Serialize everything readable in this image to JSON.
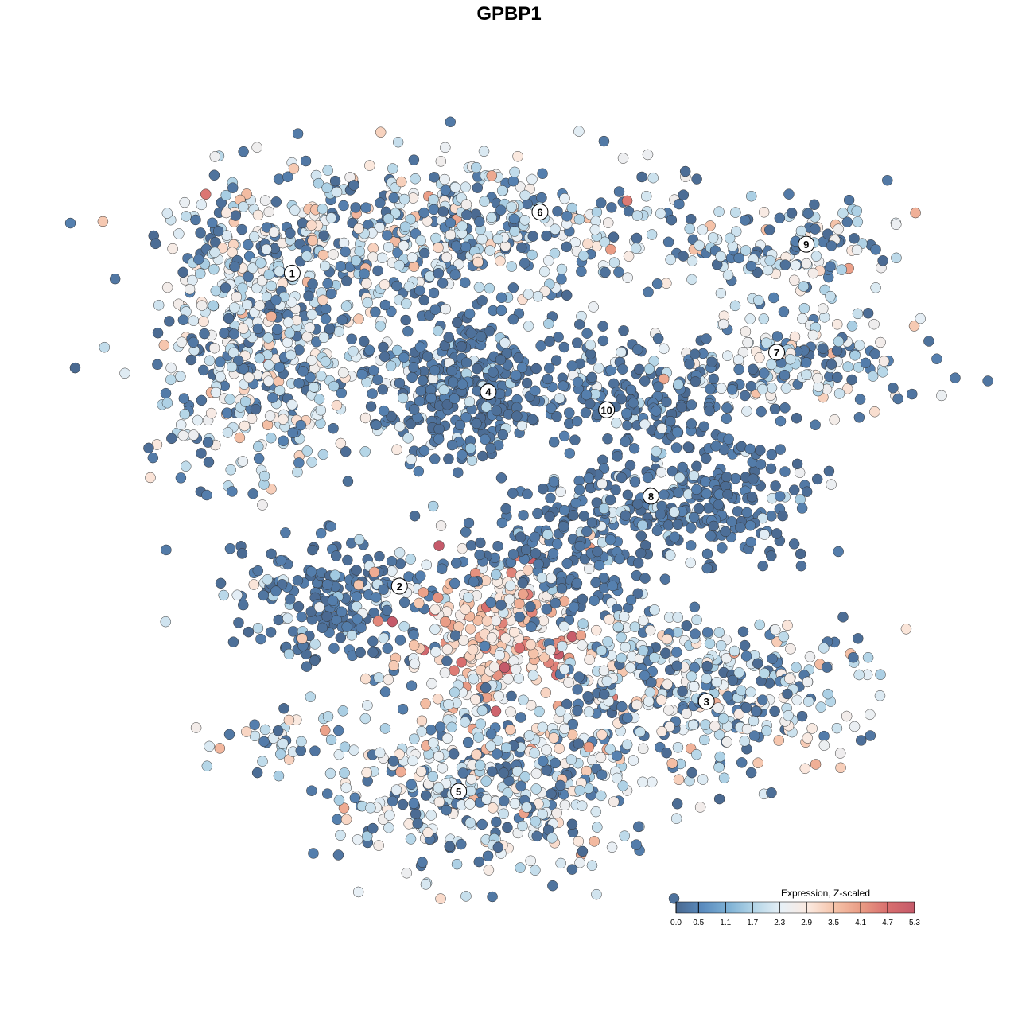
{
  "chart_data": {
    "type": "scatter",
    "title": "GPBP1",
    "xlabel": "",
    "ylabel": "",
    "axes_visible": false,
    "grid": false,
    "xlim": [
      -10,
      10
    ],
    "ylim": [
      -10,
      10
    ],
    "point_outline": "#333333",
    "legend": {
      "title": "Expression, Z-scaled",
      "placement": "bottom-right",
      "type": "colorbar",
      "range": [
        0.0,
        5.3
      ],
      "ticks": [
        "0.0",
        "0.5",
        "1.1",
        "1.7",
        "2.3",
        "2.9",
        "3.5",
        "4.1",
        "4.7",
        "5.3"
      ],
      "colors": [
        "#4a6990",
        "#5b8cbf",
        "#7fb2d5",
        "#b7d7e8",
        "#e8f0f6",
        "#fbe9df",
        "#f5c2a8",
        "#e99b84",
        "#d86e6e",
        "#c55a6a"
      ]
    },
    "clusters": [
      {
        "label": "1",
        "center": [
          -7.2,
          4.8
        ],
        "sd": [
          1.5,
          2.0
        ],
        "n": 520,
        "mean_expr": 1.4
      },
      {
        "label": "6",
        "center": [
          -2.3,
          7.7
        ],
        "sd": [
          3.2,
          1.0
        ],
        "n": 520,
        "mean_expr": 1.3
      },
      {
        "label": "4",
        "center": [
          -1.8,
          3.4
        ],
        "sd": [
          1.2,
          1.2
        ],
        "n": 360,
        "mean_expr": 0.4
      },
      {
        "label": "10",
        "center": [
          2.0,
          3.3
        ],
        "sd": [
          0.9,
          1.1
        ],
        "n": 110,
        "mean_expr": 0.3
      },
      {
        "label": "9",
        "center": [
          7.0,
          7.2
        ],
        "sd": [
          1.3,
          0.7
        ],
        "n": 130,
        "mean_expr": 1.5
      },
      {
        "label": "7",
        "center": [
          7.2,
          4.1
        ],
        "sd": [
          1.7,
          0.7
        ],
        "n": 170,
        "mean_expr": 1.5
      },
      {
        "label": "",
        "center": [
          4.2,
          2.6
        ],
        "sd": [
          0.9,
          0.9
        ],
        "n": 100,
        "mean_expr": 0.8
      },
      {
        "label": "8",
        "center": [
          5.1,
          0.2
        ],
        "sd": [
          1.3,
          0.9
        ],
        "n": 170,
        "mean_expr": 0.3
      },
      {
        "label": "",
        "center": [
          2.5,
          0.0
        ],
        "sd": [
          1.3,
          0.55
        ],
        "n": 90,
        "mean_expr": 0.6
      },
      {
        "label": "2",
        "center": [
          -5.3,
          -2.7
        ],
        "sd": [
          1.5,
          0.9
        ],
        "n": 220,
        "mean_expr": 0.5
      },
      {
        "label": "",
        "center": [
          -0.8,
          -3.6
        ],
        "sd": [
          1.3,
          1.1
        ],
        "n": 280,
        "mean_expr": 3.2
      },
      {
        "label": "",
        "center": [
          0.8,
          -1.4
        ],
        "sd": [
          1.5,
          0.9
        ],
        "n": 160,
        "mean_expr": 0.6
      },
      {
        "label": "3",
        "center": [
          4.6,
          -4.9
        ],
        "sd": [
          2.2,
          1.1
        ],
        "n": 380,
        "mean_expr": 1.7
      },
      {
        "label": "5",
        "center": [
          -1.0,
          -7.6
        ],
        "sd": [
          2.4,
          1.3
        ],
        "n": 480,
        "mean_expr": 1.6
      },
      {
        "label": "",
        "center": [
          -6.8,
          -6.4
        ],
        "sd": [
          0.9,
          0.35
        ],
        "n": 30,
        "mean_expr": 1.8
      }
    ],
    "cluster_labels": [
      {
        "label": "1",
        "pos": [
          -6.4,
          6.5
        ]
      },
      {
        "label": "6",
        "pos": [
          0.3,
          8.2
        ]
      },
      {
        "label": "4",
        "pos": [
          -1.1,
          3.2
        ]
      },
      {
        "label": "10",
        "pos": [
          2.1,
          2.7
        ]
      },
      {
        "label": "9",
        "pos": [
          7.5,
          7.3
        ]
      },
      {
        "label": "7",
        "pos": [
          6.7,
          4.3
        ]
      },
      {
        "label": "8",
        "pos": [
          3.3,
          0.3
        ]
      },
      {
        "label": "2",
        "pos": [
          -3.5,
          -2.2
        ]
      },
      {
        "label": "3",
        "pos": [
          4.8,
          -5.4
        ]
      },
      {
        "label": "5",
        "pos": [
          -1.9,
          -7.9
        ]
      }
    ]
  }
}
